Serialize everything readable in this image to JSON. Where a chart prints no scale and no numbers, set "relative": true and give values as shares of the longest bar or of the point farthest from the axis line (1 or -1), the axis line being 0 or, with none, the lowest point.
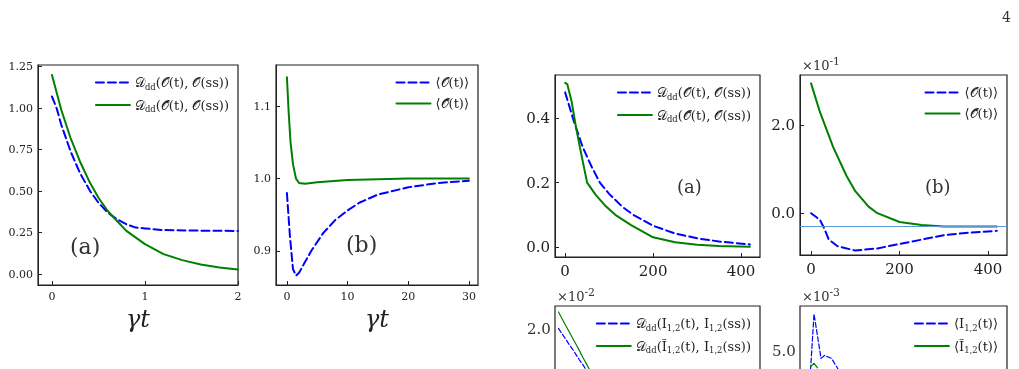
{
  "chart_data": [
    {
      "type": "line",
      "xlabel": "γt",
      "xlim": [
        -0.15,
        2.0
      ],
      "xticks": [
        0,
        1,
        2
      ],
      "ylim": [
        -0.066,
        1.26
      ],
      "yticks": [
        {
          "value": 0,
          "label": "0.00"
        },
        {
          "value": 0.25,
          "label": "0.25"
        },
        {
          "value": 0.5,
          "label": "0.50"
        },
        {
          "value": 0.75,
          "label": "0.75"
        },
        {
          "value": 1,
          "label": "1.00"
        },
        {
          "value": 1.25,
          "label": "1.25"
        }
      ],
      "grid": false,
      "legend": "top right",
      "annotations": [
        "(a)",
        "4"
      ],
      "series": [
        {
          "name": "𝒟$_{dd}$(𝒪(t), 𝒪(ss))",
          "color": "#0000ff",
          "line_style": "dashed",
          "x": [
            0,
            0.05,
            0.1,
            0.2,
            0.3,
            0.41,
            0.5,
            0.6,
            0.7,
            0.8,
            0.9,
            1.0,
            1.2,
            1.5,
            2.0
          ],
          "values": [
            1.07,
            1.0,
            0.9,
            0.74,
            0.61,
            0.5,
            0.43,
            0.37,
            0.33,
            0.3,
            0.28,
            0.275,
            0.265,
            0.262,
            0.26
          ]
        },
        {
          "name": "𝒟$_{dd}$(𝒪̃(t), 𝒪(ss))",
          "color": "#008000",
          "line_style": "solid",
          "x": [
            0,
            0.1,
            0.2,
            0.3,
            0.4,
            0.5,
            0.6,
            0.7,
            0.8,
            1.0,
            1.2,
            1.4,
            1.6,
            1.8,
            2.0
          ],
          "values": [
            1.2,
            0.99,
            0.82,
            0.68,
            0.56,
            0.46,
            0.38,
            0.32,
            0.26,
            0.18,
            0.12,
            0.084,
            0.057,
            0.039,
            0.027
          ]
        }
      ]
    },
    {
      "type": "line",
      "xlabel": "γt",
      "xlim": [
        -1.8,
        31.5
      ],
      "xticks": [
        0,
        10,
        20,
        30
      ],
      "ylim": [
        0.853,
        1.157
      ],
      "yticks": [
        {
          "value": 0.9,
          "label": "0.9"
        },
        {
          "value": 1.0,
          "label": "1.0"
        },
        {
          "value": 1.1,
          "label": "1.1"
        }
      ],
      "grid": false,
      "legend": "top right",
      "annotations": [
        "(b)"
      ],
      "series": [
        {
          "name": "⟨𝒪(t)⟩",
          "color": "#0000ff",
          "line_style": "dashed",
          "x": [
            0,
            0.5,
            1,
            1.5,
            2,
            3,
            4,
            6,
            8,
            10,
            12,
            15,
            20,
            25,
            30
          ],
          "values": [
            0.98,
            0.92,
            0.875,
            0.866,
            0.87,
            0.885,
            0.9,
            0.925,
            0.943,
            0.956,
            0.967,
            0.978,
            0.988,
            0.994,
            0.997
          ]
        },
        {
          "name": "⟨𝒪̃(t)⟩",
          "color": "#008000",
          "line_style": "solid",
          "x": [
            0,
            0.3,
            0.6,
            1,
            1.5,
            2,
            3,
            5,
            10,
            20,
            30
          ],
          "values": [
            1.14,
            1.09,
            1.05,
            1.02,
            1.0,
            0.994,
            0.993,
            0.995,
            0.998,
            1.0,
            1.0
          ]
        }
      ]
    },
    {
      "type": "line",
      "xlim": [
        -23,
        443
      ],
      "xticks": [
        0,
        200,
        400
      ],
      "ylim": [
        -0.031,
        0.534
      ],
      "yticks": [
        {
          "value": 0,
          "label": "0.0"
        },
        {
          "value": 0.2,
          "label": "0.2"
        },
        {
          "value": 0.4,
          "label": "0.4"
        }
      ],
      "grid": false,
      "legend": "top right",
      "annotations": [
        "(a)"
      ],
      "series": [
        {
          "name": "𝒟$_{dd}$(𝒪(t), 𝒪(ss))",
          "color": "#0000ff",
          "line_style": "dashed",
          "x": [
            0,
            20,
            40,
            60,
            79,
            100,
            130,
            155,
            200,
            250,
            300,
            350,
            420
          ],
          "values": [
            0.48,
            0.39,
            0.31,
            0.25,
            0.2,
            0.165,
            0.125,
            0.1,
            0.066,
            0.042,
            0.027,
            0.017,
            0.008
          ]
        },
        {
          "name": "𝒟$_{dd}$(𝒪̃(t), 𝒪(ss))",
          "color": "#008000",
          "line_style": "solid",
          "x": [
            0,
            5,
            15,
            25,
            35,
            50,
            70,
            90,
            114,
            150,
            200,
            250,
            300,
            350,
            420
          ],
          "values": [
            0.51,
            0.505,
            0.45,
            0.37,
            0.3,
            0.2,
            0.161,
            0.13,
            0.1,
            0.068,
            0.03,
            0.015,
            0.007,
            0.003,
            0.001
          ]
        }
      ]
    },
    {
      "type": "line",
      "xlim": [
        -25,
        443
      ],
      "xticks": [
        0,
        200,
        400
      ],
      "ylim": [
        -0.95,
        3.14
      ],
      "yticks": [
        {
          "value": 0,
          "label": "0.0"
        },
        {
          "value": 2,
          "label": "2.0"
        }
      ],
      "grid": false,
      "legend": "top right",
      "annotations": [
        "×10$^{-1}$",
        "(b)"
      ],
      "ref_lines": [
        {
          "axis": "y",
          "value": -0.3,
          "color": "#5b9bd5"
        }
      ],
      "series": [
        {
          "name": "⟨𝒪(t)⟩",
          "color": "#0000ff",
          "line_style": "dashed",
          "x": [
            0,
            20,
            30,
            40,
            60,
            100,
            150,
            200,
            250,
            300,
            350,
            420
          ],
          "values": [
            0,
            -0.15,
            -0.35,
            -0.6,
            -0.75,
            -0.85,
            -0.8,
            -0.7,
            -0.6,
            -0.5,
            -0.45,
            -0.4
          ]
        },
        {
          "name": "⟨𝒪̃(t)⟩",
          "color": "#008000",
          "line_style": "solid",
          "x": [
            0,
            20,
            50,
            80,
            100,
            130,
            150,
            200,
            250,
            300,
            420
          ],
          "values": [
            2.95,
            2.3,
            1.5,
            0.85,
            0.5,
            0.15,
            0,
            -0.2,
            -0.27,
            -0.3,
            -0.3
          ]
        }
      ]
    },
    {
      "type": "line",
      "categories": [
        null,
        null,
        null,
        null,
        null,
        null,
        null,
        null,
        null,
        null,
        null,
        null,
        null,
        null,
        null,
        null,
        null,
        null,
        null,
        null,
        null,
        null,
        null,
        null,
        null,
        null,
        null,
        null,
        null,
        null,
        null,
        null,
        null,
        null,
        null,
        null,
        null,
        null,
        null,
        null,
        null,
        null,
        null,
        null,
        null,
        null,
        null,
        null,
        null,
        null,
        null,
        null,
        null,
        null,
        null,
        null,
        null,
        null,
        null,
        null
      ],
      "relative": true,
      "grid": false,
      "legend": "top right",
      "annotations": [
        "×10$^{-2}$",
        "2.0"
      ],
      "series": [
        {
          "name": "𝒟$_{dd}$(I$_{1,2}$(t), I$_{1,2}$(ss))",
          "color": "#0000ff",
          "line_style": "dashed",
          "values": [
            null,
            0.717,
            0.624,
            0.54,
            0.447,
            0.363,
            0.27,
            0.177,
            0.093,
            0,
            null,
            null,
            null,
            null,
            null,
            null,
            null,
            null,
            null,
            null,
            null,
            null,
            null,
            null,
            null,
            null,
            null,
            null,
            null,
            null,
            null,
            null,
            null,
            null,
            null,
            null,
            null,
            null,
            null,
            null,
            null,
            null,
            null,
            null,
            null,
            null,
            null,
            null,
            null,
            null,
            null,
            null,
            null,
            null,
            null,
            null,
            null,
            null,
            null,
            null
          ]
        },
        {
          "name": "𝒟$_{dd}$(Ĩ$_{1,2}$(t), I$_{1,2}$(ss))",
          "color": "#008000",
          "line_style": "solid",
          "values": [
            null,
            1,
            0.886,
            0.776,
            0.667,
            0.557,
            0.447,
            0.338,
            0.219,
            0.11,
            0,
            null,
            null,
            null,
            null,
            null,
            null,
            null,
            null,
            null,
            null,
            null,
            null,
            null,
            null,
            null,
            null,
            null,
            null,
            null,
            null,
            null,
            null,
            null,
            null,
            null,
            null,
            null,
            null,
            null,
            null,
            null,
            null,
            null,
            null,
            null,
            null,
            null,
            null,
            null,
            null,
            null,
            null,
            null,
            null,
            null,
            null,
            null,
            null,
            null
          ]
        }
      ]
    },
    {
      "type": "line",
      "categories": [
        null,
        null,
        null,
        null,
        null,
        null,
        null,
        null,
        null,
        null,
        null,
        null,
        null,
        null,
        null,
        null,
        null,
        null,
        null,
        null,
        null,
        null,
        null,
        null,
        null,
        null,
        null,
        null,
        null,
        null,
        null,
        null,
        null,
        null,
        null,
        null,
        null,
        null,
        null,
        null,
        null,
        null,
        null,
        null,
        null,
        null,
        null,
        null,
        null,
        null,
        null,
        null,
        null,
        null,
        null,
        null,
        null,
        null,
        null,
        null
      ],
      "relative": true,
      "grid": false,
      "legend": "top right",
      "annotations": [
        "×10$^{-3}$",
        "5.0"
      ],
      "series": [
        {
          "name": "⟨I$_{1,2}$(t)⟩",
          "color": "#0000ff",
          "line_style": "dashed",
          "values": [
            null,
            null,
            null,
            0,
            1,
            0.603,
            0.207,
            0.259,
            0.233,
            0.207,
            0.103,
            0,
            null,
            null,
            null,
            null,
            null,
            null,
            null,
            null,
            null,
            null,
            null,
            null,
            null,
            null,
            null,
            null,
            null,
            null,
            null,
            null,
            null,
            null,
            null,
            null,
            null,
            null,
            null,
            null,
            null,
            null,
            null,
            null,
            null,
            null,
            null,
            null,
            null,
            null,
            null,
            null,
            null,
            null,
            null,
            null,
            null,
            null,
            null,
            null
          ]
        },
        {
          "name": "⟨Ĩ$_{1,2}$(t)⟩",
          "color": "#008000",
          "line_style": "solid",
          "values": [
            null,
            null,
            null,
            0.06,
            0.12,
            0.04,
            null,
            null,
            null,
            null,
            null,
            null,
            null,
            null,
            null,
            null,
            null,
            null,
            null,
            null,
            null,
            null,
            null,
            null,
            null,
            null,
            null,
            null,
            null,
            null,
            null,
            null,
            null,
            null,
            null,
            null,
            null,
            null,
            null,
            null,
            null,
            null,
            null,
            null,
            null,
            null,
            null,
            null,
            null,
            null,
            null,
            null,
            null,
            null,
            null,
            null,
            null,
            null,
            null,
            null
          ]
        }
      ]
    }
  ]
}
